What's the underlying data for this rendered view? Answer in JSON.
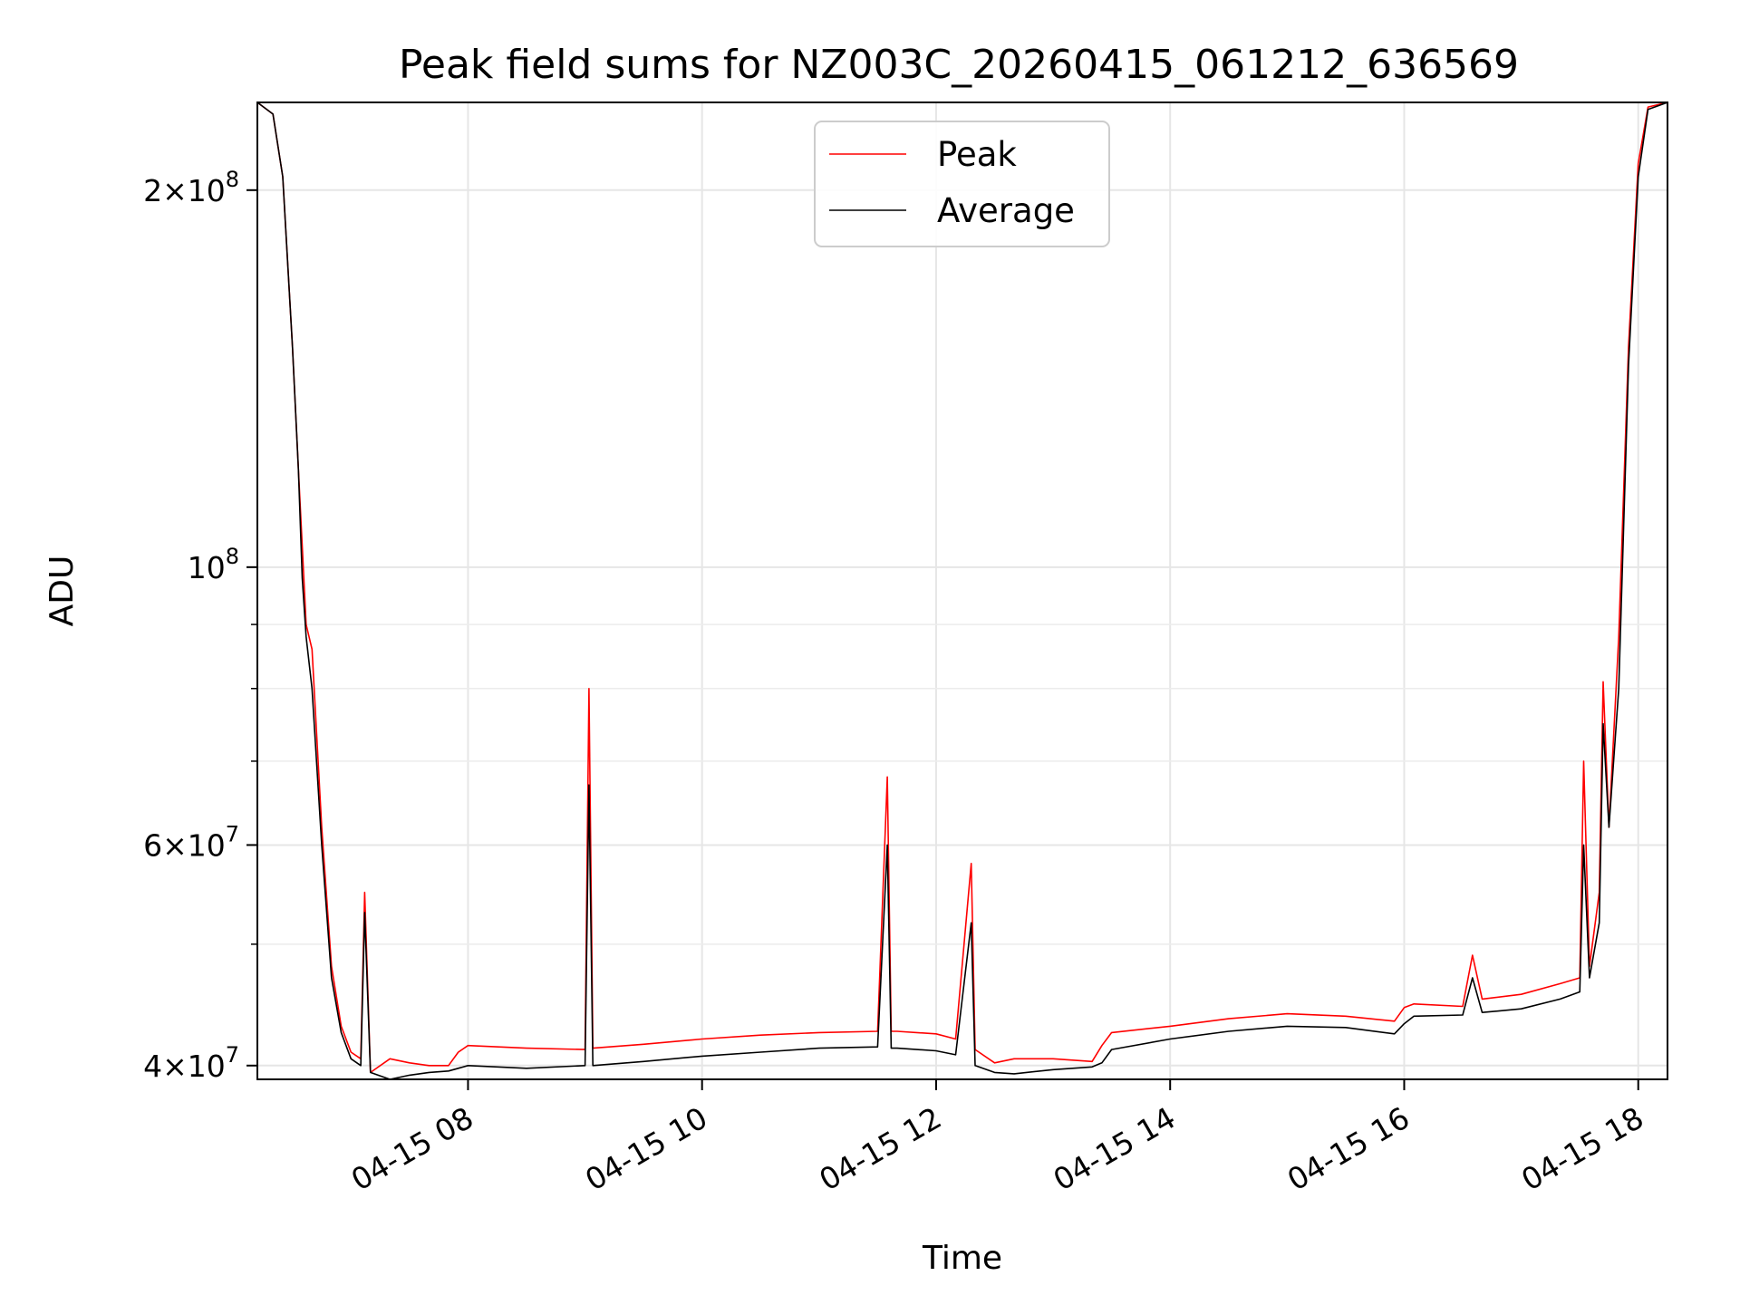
{
  "chart_data": {
    "type": "line",
    "title": "Peak field sums for NZ003C_20260415_061212_636569",
    "xlabel": "Time",
    "ylabel": "ADU",
    "y_scale": "log",
    "grid": true,
    "legend_position": "upper-center",
    "xlim": [
      "04-15 06:12",
      "04-15 18:15"
    ],
    "ylim": [
      39000000,
      235000000
    ],
    "x_ticks": [
      {
        "value": "04-15 08:00",
        "label": "04-15 08"
      },
      {
        "value": "04-15 10:00",
        "label": "04-15 10"
      },
      {
        "value": "04-15 12:00",
        "label": "04-15 12"
      },
      {
        "value": "04-15 14:00",
        "label": "04-15 14"
      },
      {
        "value": "04-15 16:00",
        "label": "04-15 16"
      },
      {
        "value": "04-15 18:00",
        "label": "04-15 18"
      }
    ],
    "y_major_ticks": [
      {
        "value": 40000000,
        "mantissa": "4",
        "base": "10",
        "exp": "7"
      },
      {
        "value": 60000000,
        "mantissa": "6",
        "base": "10",
        "exp": "7"
      },
      {
        "value": 100000000,
        "mantissa": "",
        "base": "10",
        "exp": "8"
      },
      {
        "value": 200000000,
        "mantissa": "2",
        "base": "10",
        "exp": "8"
      }
    ],
    "y_minor_ticks": [
      50000000,
      70000000,
      80000000,
      90000000
    ],
    "series": [
      {
        "name": "Peak",
        "color": "#ff0000",
        "x": [
          "04-15 06:12",
          "04-15 06:20",
          "04-15 06:25",
          "04-15 06:30",
          "04-15 06:33",
          "04-15 06:35",
          "04-15 06:37",
          "04-15 06:40",
          "04-15 06:45",
          "04-15 06:50",
          "04-15 06:55",
          "04-15 07:00",
          "04-15 07:05",
          "04-15 07:07",
          "04-15 07:10",
          "04-15 07:20",
          "04-15 07:30",
          "04-15 07:40",
          "04-15 07:50",
          "04-15 07:55",
          "04-15 08:00",
          "04-15 08:30",
          "04-15 09:00",
          "04-15 09:02",
          "04-15 09:04",
          "04-15 09:30",
          "04-15 10:00",
          "04-15 10:30",
          "04-15 11:00",
          "04-15 11:30",
          "04-15 11:35",
          "04-15 11:37",
          "04-15 11:40",
          "04-15 12:00",
          "04-15 12:10",
          "04-15 12:18",
          "04-15 12:20",
          "04-15 12:30",
          "04-15 12:40",
          "04-15 13:00",
          "04-15 13:20",
          "04-15 13:25",
          "04-15 13:30",
          "04-15 14:00",
          "04-15 14:30",
          "04-15 15:00",
          "04-15 15:30",
          "04-15 15:55",
          "04-15 16:00",
          "04-15 16:05",
          "04-15 16:30",
          "04-15 16:35",
          "04-15 16:40",
          "04-15 17:00",
          "04-15 17:20",
          "04-15 17:30",
          "04-15 17:32",
          "04-15 17:35",
          "04-15 17:40",
          "04-15 17:42",
          "04-15 17:45",
          "04-15 17:50",
          "04-15 17:55",
          "04-15 18:00",
          "04-15 18:05",
          "04-15 18:15"
        ],
        "y": [
          235000000,
          230000000,
          205000000,
          150000000,
          120000000,
          104000000,
          90000000,
          86000000,
          62000000,
          48000000,
          43000000,
          41000000,
          40500000,
          55000000,
          39500000,
          40500000,
          40200000,
          40000000,
          40000000,
          41000000,
          41500000,
          41300000,
          41200000,
          80000000,
          41300000,
          41600000,
          42000000,
          42300000,
          42500000,
          42600000,
          68000000,
          42600000,
          42600000,
          42400000,
          42000000,
          58000000,
          41200000,
          40200000,
          40500000,
          40500000,
          40300000,
          41500000,
          42500000,
          43000000,
          43600000,
          44000000,
          43800000,
          43400000,
          44500000,
          44800000,
          44600000,
          49000000,
          45200000,
          45600000,
          46500000,
          47000000,
          70000000,
          48000000,
          55000000,
          81000000,
          62000000,
          88000000,
          150000000,
          210000000,
          233000000,
          235000000
        ]
      },
      {
        "name": "Average",
        "color": "#000000",
        "x": [
          "04-15 06:12",
          "04-15 06:20",
          "04-15 06:25",
          "04-15 06:30",
          "04-15 06:33",
          "04-15 06:35",
          "04-15 06:37",
          "04-15 06:40",
          "04-15 06:45",
          "04-15 06:50",
          "04-15 06:55",
          "04-15 07:00",
          "04-15 07:05",
          "04-15 07:07",
          "04-15 07:10",
          "04-15 07:20",
          "04-15 07:30",
          "04-15 07:40",
          "04-15 07:50",
          "04-15 07:55",
          "04-15 08:00",
          "04-15 08:30",
          "04-15 09:00",
          "04-15 09:02",
          "04-15 09:04",
          "04-15 09:30",
          "04-15 10:00",
          "04-15 10:30",
          "04-15 11:00",
          "04-15 11:30",
          "04-15 11:35",
          "04-15 11:37",
          "04-15 11:40",
          "04-15 12:00",
          "04-15 12:10",
          "04-15 12:18",
          "04-15 12:20",
          "04-15 12:30",
          "04-15 12:40",
          "04-15 13:00",
          "04-15 13:20",
          "04-15 13:25",
          "04-15 13:30",
          "04-15 14:00",
          "04-15 14:30",
          "04-15 15:00",
          "04-15 15:30",
          "04-15 15:55",
          "04-15 16:00",
          "04-15 16:05",
          "04-15 16:30",
          "04-15 16:35",
          "04-15 16:40",
          "04-15 17:00",
          "04-15 17:20",
          "04-15 17:30",
          "04-15 17:32",
          "04-15 17:35",
          "04-15 17:40",
          "04-15 17:42",
          "04-15 17:45",
          "04-15 17:50",
          "04-15 17:55",
          "04-15 18:00",
          "04-15 18:05",
          "04-15 18:15"
        ],
        "y": [
          235000000,
          230000000,
          205000000,
          150000000,
          120000000,
          98000000,
          88000000,
          80000000,
          60000000,
          47000000,
          42500000,
          40500000,
          40000000,
          53000000,
          39500000,
          39000000,
          39300000,
          39500000,
          39600000,
          39800000,
          40000000,
          39800000,
          40000000,
          67000000,
          40000000,
          40300000,
          40700000,
          41000000,
          41300000,
          41400000,
          60000000,
          41300000,
          41300000,
          41100000,
          40800000,
          52000000,
          40000000,
          39500000,
          39400000,
          39700000,
          39900000,
          40200000,
          41200000,
          42000000,
          42600000,
          43000000,
          42900000,
          42400000,
          43200000,
          43800000,
          43900000,
          47000000,
          44100000,
          44400000,
          45200000,
          45800000,
          60000000,
          47000000,
          52000000,
          75000000,
          62000000,
          80000000,
          145000000,
          205000000,
          232000000,
          235000000
        ]
      }
    ]
  }
}
